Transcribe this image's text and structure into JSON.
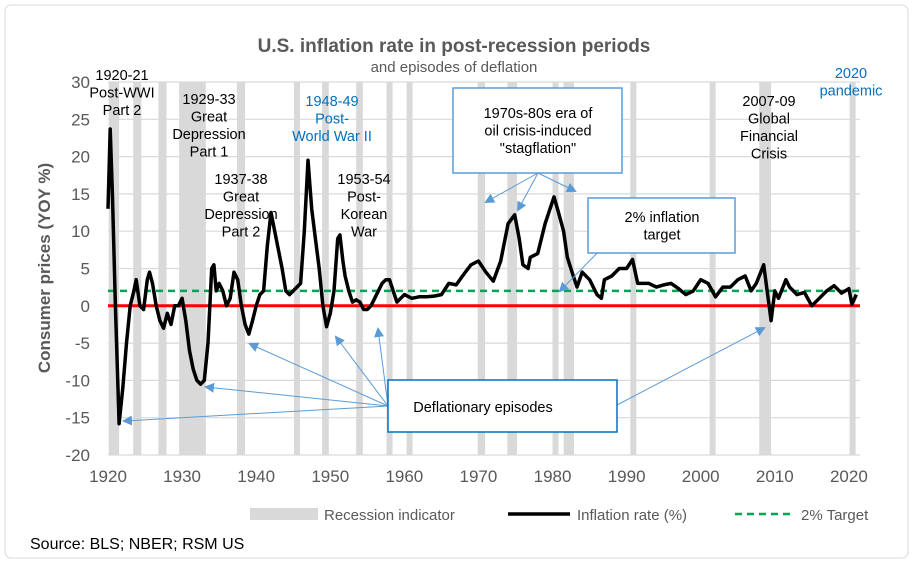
{
  "chart_data": {
    "type": "line",
    "title": "U.S. inflation rate in post-recession periods",
    "subtitle": "and episodes of deflation",
    "ylabel": "Consumer prices (YOY %)",
    "xlabel": "",
    "xlim": [
      1920,
      2021.5
    ],
    "ylim": [
      -20,
      30
    ],
    "x_ticks": [
      1920,
      1930,
      1940,
      1950,
      1960,
      1970,
      1980,
      1990,
      2000,
      2010,
      2020
    ],
    "y_ticks": [
      -20,
      -15,
      -10,
      -5,
      0,
      5,
      10,
      15,
      20,
      25,
      30
    ],
    "grid": "horizontal",
    "legend_placement": "bottom",
    "colors": {
      "recession": "#d9d9d9",
      "inflation": "#000000",
      "target": "#00a651",
      "zero": "#ff0000",
      "annotation_box": "#5b9bd5",
      "annotation_blue": "#0070c0"
    },
    "legend": [
      "Recession indicator",
      "Inflation rate (%)",
      "2% Target"
    ],
    "target_value": 2,
    "recessions": [
      [
        1920.1,
        1921.5
      ],
      [
        1923.4,
        1924.5
      ],
      [
        1926.8,
        1927.9
      ],
      [
        1929.6,
        1933.2
      ],
      [
        1937.4,
        1938.5
      ],
      [
        1945.1,
        1945.8
      ],
      [
        1948.9,
        1949.8
      ],
      [
        1953.5,
        1954.4
      ],
      [
        1957.6,
        1958.3
      ],
      [
        1960.3,
        1961.1
      ],
      [
        1969.9,
        1970.9
      ],
      [
        1973.9,
        1975.2
      ],
      [
        1980.0,
        1980.5
      ],
      [
        1981.5,
        1982.9
      ],
      [
        1990.5,
        1991.2
      ],
      [
        2001.2,
        2001.9
      ],
      [
        2007.9,
        2009.5
      ],
      [
        2020.1,
        2020.5
      ]
    ],
    "series": [
      {
        "name": "Inflation rate (%)",
        "x": [
          1920.0,
          1920.3,
          1920.6,
          1921.0,
          1921.5,
          1922.0,
          1922.5,
          1923.0,
          1923.5,
          1923.8,
          1924.3,
          1924.8,
          1925.3,
          1925.6,
          1926.0,
          1926.5,
          1927.0,
          1927.5,
          1928.0,
          1928.5,
          1929.0,
          1929.5,
          1930.0,
          1930.5,
          1931.0,
          1931.5,
          1932.0,
          1932.5,
          1933.0,
          1933.5,
          1934.0,
          1934.3,
          1934.6,
          1935.0,
          1935.5,
          1936.0,
          1936.5,
          1937.0,
          1937.5,
          1938.0,
          1938.5,
          1939.0,
          1939.5,
          1940.0,
          1940.5,
          1941.0,
          1941.5,
          1942.0,
          1942.5,
          1943.0,
          1943.5,
          1944.0,
          1944.5,
          1945.0,
          1945.5,
          1946.0,
          1946.5,
          1947.0,
          1947.5,
          1948.0,
          1948.5,
          1949.0,
          1949.5,
          1950.0,
          1950.5,
          1951.0,
          1951.3,
          1951.7,
          1952.0,
          1952.5,
          1953.0,
          1953.5,
          1954.0,
          1954.5,
          1955.0,
          1955.5,
          1956.0,
          1956.5,
          1957.0,
          1957.5,
          1958.0,
          1958.5,
          1959.0,
          1959.5,
          1960.0,
          1961,
          1962,
          1963,
          1964,
          1965,
          1966,
          1967,
          1968,
          1969,
          1970,
          1971,
          1972,
          1973,
          1974,
          1974.9,
          1975.5,
          1976,
          1976.7,
          1977,
          1978,
          1979,
          1980.2,
          1980.8,
          1981.5,
          1982,
          1982.8,
          1983.3,
          1984,
          1985,
          1986,
          1986.6,
          1987,
          1988,
          1989,
          1990,
          1990.8,
          1991.5,
          1992,
          1993,
          1994,
          1995,
          1996,
          1997,
          1998,
          1999,
          2000,
          2001,
          2002,
          2003,
          2004,
          2005,
          2006,
          2006.8,
          2007.5,
          2008.5,
          2009.5,
          2010,
          2010.5,
          2011.5,
          2012,
          2013,
          2014,
          2015,
          2016,
          2017,
          2018,
          2019,
          2020,
          2020.4,
          2021
        ],
        "values": [
          13,
          23.7,
          15,
          0,
          -15.8,
          -11,
          -5,
          0,
          2,
          3.5,
          0,
          -0.5,
          3.5,
          4.5,
          3,
          0,
          -2,
          -3,
          -1,
          -2.5,
          0,
          0,
          1,
          -2,
          -6,
          -8.5,
          -10,
          -10.5,
          -10,
          -5,
          5,
          5.5,
          2,
          3,
          2,
          0,
          1,
          4.5,
          3.5,
          0,
          -2.5,
          -3.8,
          -2,
          0,
          1.5,
          2,
          8,
          12.5,
          10,
          7.5,
          5,
          2,
          1.5,
          2,
          2.5,
          3,
          10,
          19.5,
          13,
          9,
          5,
          0,
          -2.8,
          -1,
          2,
          9,
          9.5,
          6,
          4,
          2,
          0.5,
          0.8,
          0.5,
          -0.5,
          -0.5,
          0,
          1,
          2,
          3,
          3.5,
          3.5,
          2,
          0.5,
          1,
          1.5,
          1,
          1.2,
          1.2,
          1.3,
          1.5,
          3,
          2.8,
          4.2,
          5.5,
          6,
          4.5,
          3.3,
          6,
          11,
          12.2,
          9,
          5.5,
          5,
          6.5,
          7,
          11,
          14.6,
          12.5,
          10,
          6.5,
          4,
          2.5,
          4.5,
          3.5,
          1.5,
          1,
          3.5,
          4,
          5,
          5,
          6.2,
          3,
          3,
          3,
          2.5,
          2.8,
          3,
          2.3,
          1.5,
          2,
          3.5,
          3,
          1.2,
          2.5,
          2.5,
          3.5,
          4,
          2,
          3,
          5.5,
          -2,
          2,
          1,
          3.5,
          2.5,
          1.5,
          1.8,
          0,
          1,
          2,
          2.7,
          1.7,
          2.3,
          0.2,
          1.5
        ]
      }
    ],
    "annotations": {
      "a1920": [
        "1920-21",
        "Post-WWI",
        "Part 2"
      ],
      "a1929": [
        "1929-33",
        "Great",
        "Depression",
        "Part 1"
      ],
      "a1937": [
        "1937-38",
        "Great",
        "Depression",
        "Part 2"
      ],
      "a1948": [
        "1948-49",
        "Post-",
        "World War II"
      ],
      "a1953": [
        "1953-54",
        "Post-",
        "Korean",
        "War"
      ],
      "a2007": [
        "2007-09",
        "Global",
        "Financial",
        "Crisis"
      ],
      "a2020": [
        "2020",
        "pandemic"
      ],
      "stagflation": [
        "1970s-80s era of",
        "oil crisis-induced",
        "\"stagflation\""
      ],
      "target": [
        "2% inflation",
        "target"
      ],
      "deflation": [
        "Deflationary episodes"
      ]
    },
    "source": "Source: BLS; NBER; RSM US"
  }
}
